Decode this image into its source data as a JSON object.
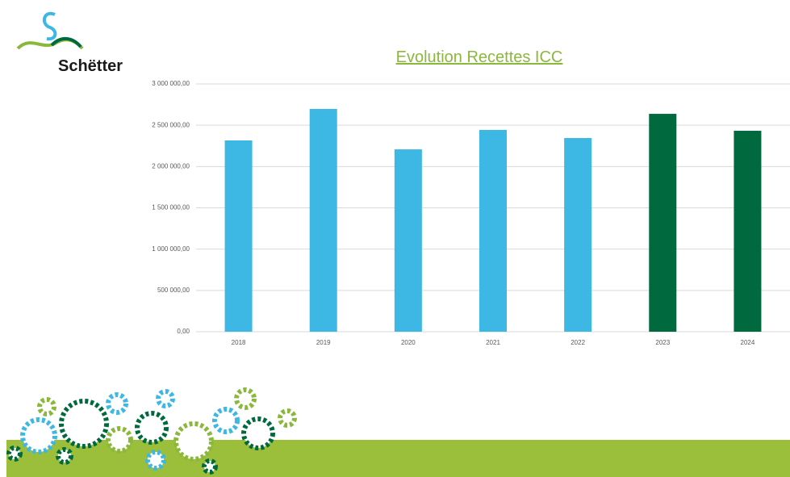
{
  "logo": {
    "text": "Schëtter"
  },
  "chart_data": {
    "type": "bar",
    "title": "Evolution Recettes ICC",
    "categories": [
      "2018",
      "2019",
      "2020",
      "2021",
      "2022",
      "2023",
      "2024"
    ],
    "values": [
      2316000,
      2697000,
      2208000,
      2443000,
      2345000,
      2638000,
      2433000
    ],
    "colors": [
      "#3db7e4",
      "#3db7e4",
      "#3db7e4",
      "#3db7e4",
      "#3db7e4",
      "#006a3e",
      "#006a3e"
    ],
    "ylim": [
      0,
      3000000
    ],
    "yticks": [
      {
        "value": 0,
        "label": "0,00"
      },
      {
        "value": 500000,
        "label": "500 000,00"
      },
      {
        "value": 1000000,
        "label": "1 000 000,00"
      },
      {
        "value": 1500000,
        "label": "1 500 000,00"
      },
      {
        "value": 2000000,
        "label": "2 000 000,00"
      },
      {
        "value": 2500000,
        "label": "2 500 000,00"
      },
      {
        "value": 3000000,
        "label": "3 000 000,00"
      }
    ],
    "grid": true
  }
}
